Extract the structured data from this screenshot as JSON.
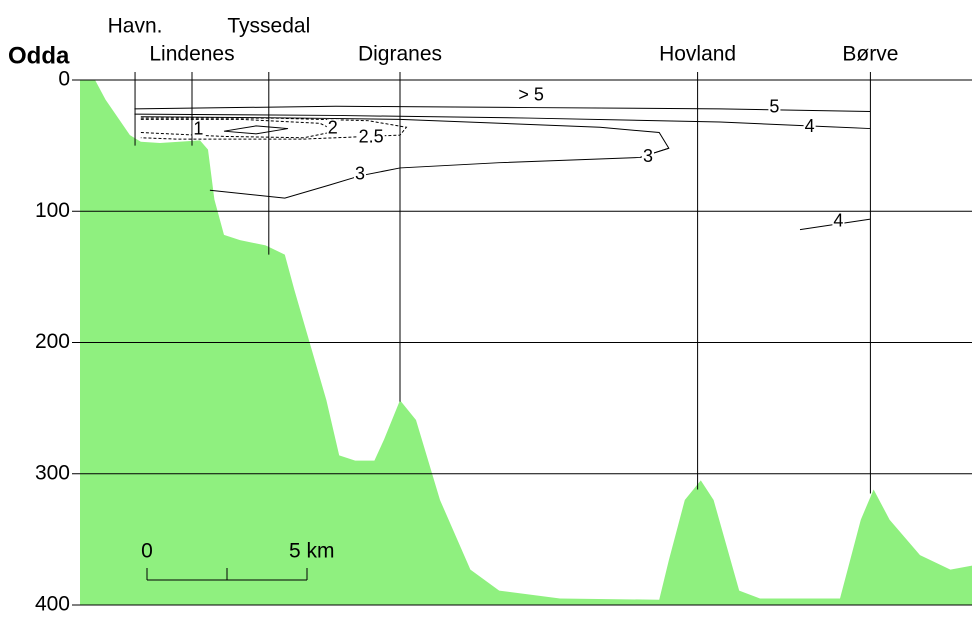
{
  "chart_data": {
    "type": "section",
    "title": "Odda",
    "ylim": [
      0,
      400
    ],
    "yticks": [
      0,
      100,
      200,
      300,
      400
    ],
    "xlim": [
      0,
      27.875
    ],
    "grid": true,
    "bottom": {
      "color": "#8ff07f",
      "x": [
        0,
        0.47,
        0.8,
        1.56,
        1.9,
        2.5,
        3.75,
        4,
        4.2,
        4.5,
        5,
        5.8,
        6.4,
        6.7,
        7.2,
        7.7,
        8.1,
        8.6,
        9.2,
        9.5,
        10,
        10.5,
        11.25,
        12.2,
        13.1,
        15,
        18.1,
        18.4,
        18.9,
        19.4,
        19.8,
        20.6,
        21.25,
        23.75,
        24.4,
        24.8,
        25.3,
        26.25,
        27.2,
        27.875
      ],
      "y": [
        0,
        0,
        15,
        42,
        47,
        48,
        46,
        53,
        91,
        118,
        122,
        126,
        133,
        160,
        202,
        244,
        286,
        290,
        290,
        274,
        244,
        259,
        320,
        373,
        389,
        395,
        396,
        366,
        320,
        305,
        320,
        389,
        395,
        395,
        335,
        312,
        335,
        362,
        373,
        370
      ]
    },
    "stations": [
      {
        "name": "Havn.",
        "x": 1.72,
        "depth": 50
      },
      {
        "name": "Lindenes",
        "x": 3.5,
        "depth": 50
      },
      {
        "name": "Tyssedal",
        "x": 5.9,
        "depth": 133
      },
      {
        "name": "Digranes",
        "x": 10,
        "depth": 245
      },
      {
        "name": "Hovland",
        "x": 19.3,
        "depth": 312
      },
      {
        "name": "Børve",
        "x": 24.7,
        "depth": 315
      }
    ],
    "contours": [
      {
        "label": 5,
        "x": [
          1.7,
          8,
          14,
          20,
          24.7
        ],
        "y": [
          22,
          20,
          21,
          22,
          24
        ],
        "label_at": [
          21.7,
          21
        ]
      },
      {
        "label": 4,
        "x": [
          1.7,
          8,
          14,
          20,
          24.7
        ],
        "y": [
          26,
          27,
          29,
          32,
          37
        ],
        "label_at": [
          22.8,
          36
        ]
      },
      {
        "label": 3,
        "x": [
          4.06,
          6.4,
          7.8,
          8.75,
          10,
          13.1,
          17.5,
          18.4,
          18.1,
          16.25,
          10,
          6.9,
          1.9
        ],
        "y": [
          84,
          90,
          80,
          73,
          67,
          63,
          59,
          52,
          40,
          36,
          30,
          29,
          28
        ],
        "label_at": [
          8.75,
          72
        ]
      },
      {
        "label": 3,
        "x": [
          17.5,
          18.4
        ],
        "y": [
          59,
          52
        ],
        "label_at": [
          17.75,
          59
        ]
      },
      {
        "label": 4,
        "x": [
          22.5,
          24.7
        ],
        "y": [
          114,
          106
        ],
        "label_at": [
          23.7,
          108
        ]
      },
      {
        "label": 2.5,
        "dashed": true,
        "x": [
          1.9,
          6,
          9,
          10.2,
          10,
          7,
          3,
          1.9
        ],
        "y": [
          29,
          29,
          31,
          36,
          42,
          45,
          45,
          44
        ],
        "label_at": [
          9.1,
          44
        ]
      },
      {
        "label": 2,
        "dashed": true,
        "x": [
          1.9,
          5,
          7.5,
          8,
          7,
          4.5,
          1.9
        ],
        "y": [
          30,
          30,
          33,
          39,
          44,
          43,
          40
        ],
        "label_at": [
          7.9,
          37
        ]
      },
      {
        "label": 1,
        "x": [
          4.5,
          5.5,
          6.5,
          5.5,
          4.5
        ],
        "y": [
          39,
          35,
          37,
          41,
          39
        ],
        "label_at": [
          3.7,
          38
        ]
      }
    ],
    "annotations": [
      {
        "text": "> 5",
        "x": 14.1,
        "y": 12
      }
    ],
    "scalebar": [
      {
        "value": 0,
        "label": "0"
      },
      {
        "value": 5,
        "label": "5 km"
      }
    ]
  }
}
